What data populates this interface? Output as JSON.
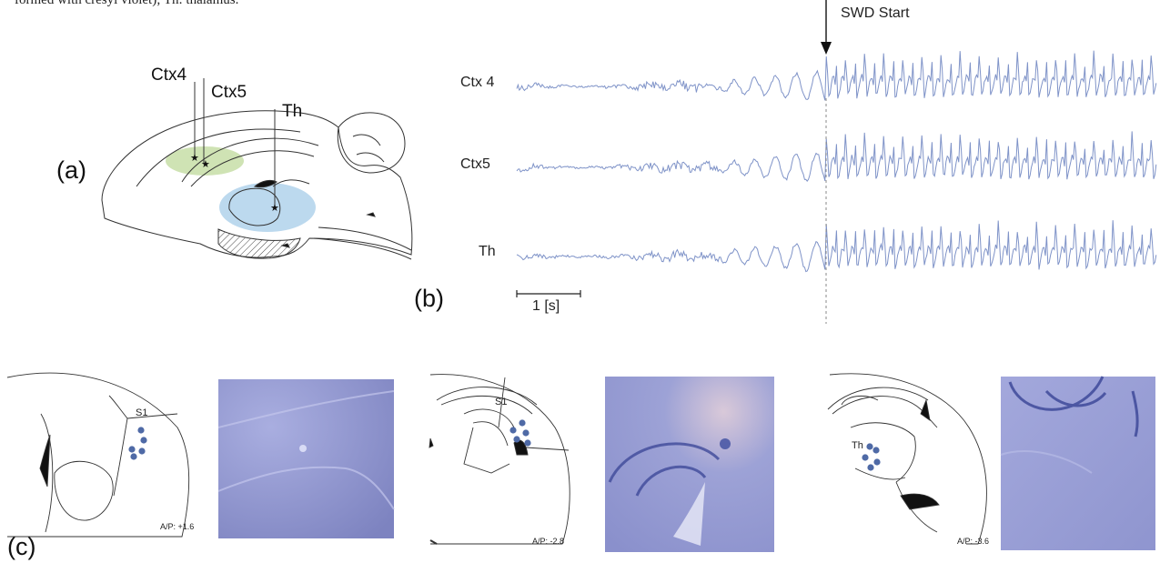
{
  "caption_fragment": "formed with cresyl violet); Th: thalamus.",
  "colors": {
    "trace": "#7f93c8",
    "cortex_highlight": "#cfe3b4",
    "thalamus_highlight": "#bcd9ee",
    "electrode_dot": "#4f6aa6",
    "nissl_stain": "#8a90cc"
  },
  "panel_a": {
    "label": "(a)",
    "probes": [
      "Ctx4",
      "Ctx5",
      "Th"
    ]
  },
  "panel_b": {
    "label": "(b)",
    "event_marker": "SWD Start",
    "scale_bar": "1 [s]",
    "traces": [
      "Ctx 4",
      "Ctx5",
      "Th"
    ]
  },
  "panel_c": {
    "label": "(c)",
    "sections": [
      {
        "region": "S1",
        "ap": "A/P: +1.6",
        "icon": "coronal-section-icon"
      },
      {
        "region": "S1",
        "ap": "A/P: -2.8",
        "icon": "coronal-section-icon"
      },
      {
        "region": "Th",
        "ap": "A/P: -3.6",
        "icon": "coronal-section-icon"
      }
    ]
  }
}
